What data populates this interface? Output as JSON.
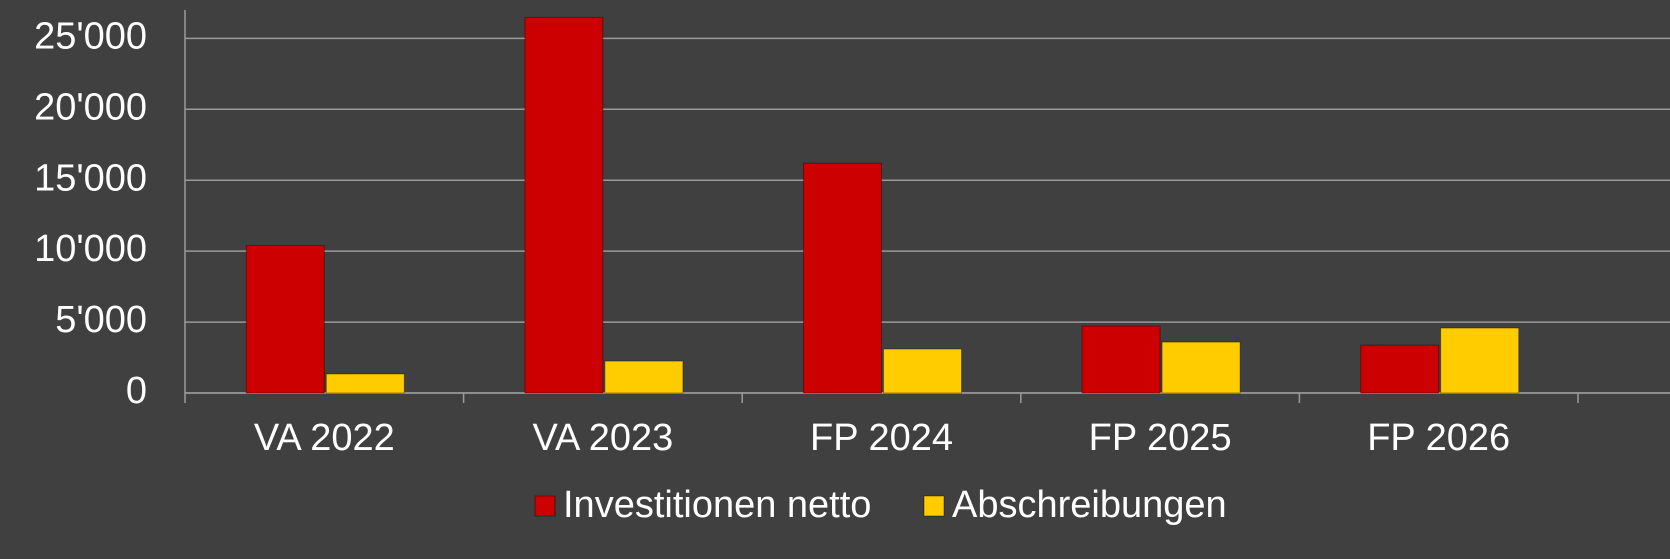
{
  "chart_data": {
    "type": "bar",
    "categories": [
      "VA 2022",
      "VA 2023",
      "FP 2024",
      "FP 2025",
      "FP 2026"
    ],
    "series": [
      {
        "name": "Investitionen netto",
        "color": "#cc0000",
        "values": [
          10400,
          26480,
          16200,
          4720,
          3380
        ]
      },
      {
        "name": "Abschreibungen",
        "color": "#ffcc00",
        "values": [
          1340,
          2250,
          3100,
          3590,
          4580
        ]
      }
    ],
    "ylim": [
      0,
      27000
    ],
    "yticks": [
      0,
      {
        "value": 5000,
        "label": "5'000"
      },
      {
        "value": 10000,
        "label": "10'000"
      },
      {
        "value": 15000,
        "label": "15'000"
      },
      {
        "value": 20000,
        "label": "20'000"
      },
      {
        "value": 25000,
        "label": "25'000"
      }
    ],
    "grid": true,
    "legend": "bottom"
  }
}
